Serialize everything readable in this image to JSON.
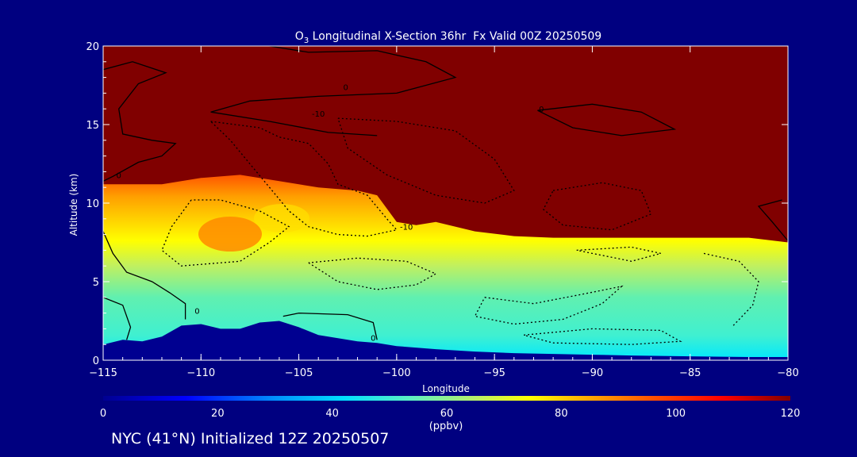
{
  "chart_data": {
    "type": "heatmap",
    "title_prefix": "O",
    "title_subscript": "3",
    "title_rest": " Longitudinal X-Section 36hr  Fx Valid 00Z 20250509",
    "xlabel": "Longitude",
    "ylabel": "Altitude (km)",
    "xlim": [
      -115,
      -80
    ],
    "ylim": [
      0,
      20
    ],
    "x_ticks": [
      -115,
      -110,
      -105,
      -100,
      -95,
      -90,
      -85,
      -80
    ],
    "x_tick_labels": [
      "−115",
      "−110",
      "−105",
      "−100",
      "−95",
      "−90",
      "−85",
      "−80"
    ],
    "y_ticks": [
      0,
      5,
      10,
      15,
      20
    ],
    "y_tick_labels": [
      "0",
      "5",
      "10",
      "15",
      "20"
    ],
    "colorbar": {
      "min": 0,
      "max": 120,
      "ticks": [
        0,
        20,
        40,
        60,
        80,
        100,
        120
      ],
      "tick_labels": [
        "0",
        "20",
        "40",
        "60",
        "80",
        "100",
        "120"
      ],
      "unit_label": "(ppbv)",
      "colors": [
        "#000090",
        "#0000ff",
        "#0090ff",
        "#00e0ff",
        "#60f0c0",
        "#c0f060",
        "#ffff00",
        "#ffb000",
        "#ff5000",
        "#ff0000",
        "#800000"
      ]
    },
    "terrain_profile": {
      "lon": [
        -115,
        -114,
        -113,
        -112,
        -111,
        -110,
        -109,
        -108,
        -107,
        -106,
        -105,
        -104,
        -103,
        -102,
        -101,
        -100,
        -98,
        -96,
        -94,
        -92,
        -90,
        -88,
        -85,
        -82,
        -80
      ],
      "alt_km": [
        1.0,
        1.3,
        1.2,
        1.5,
        2.2,
        2.3,
        2.0,
        2.0,
        2.4,
        2.5,
        2.1,
        1.6,
        1.4,
        1.2,
        1.1,
        0.9,
        0.7,
        0.55,
        0.45,
        0.4,
        0.35,
        0.3,
        0.25,
        0.2,
        0.2
      ]
    },
    "tropopause_ppbv120_top_km": {
      "lon": [
        -115,
        -112,
        -110,
        -108,
        -106,
        -104,
        -102,
        -101,
        -100,
        -99,
        -98,
        -96,
        -94,
        -92,
        -90,
        -88,
        -86,
        -84,
        -82,
        -80
      ],
      "alt_km": [
        11.2,
        11.2,
        11.6,
        11.8,
        11.4,
        11.0,
        10.8,
        10.5,
        8.8,
        8.6,
        8.8,
        8.2,
        7.9,
        7.8,
        7.8,
        7.8,
        7.8,
        7.8,
        7.8,
        7.5
      ]
    },
    "contour_labels": [
      {
        "text": "0",
        "lon": -102.6,
        "alt": 17.2
      },
      {
        "text": "-10",
        "lon": -104.0,
        "alt": 15.5
      },
      {
        "text": "0",
        "lon": -92.6,
        "alt": 15.8
      },
      {
        "text": "-10",
        "lon": -99.5,
        "alt": 8.3
      },
      {
        "text": "0",
        "lon": -114.2,
        "alt": 11.6
      },
      {
        "text": "0",
        "lon": -110.2,
        "alt": 2.95
      },
      {
        "text": "0",
        "lon": -101.2,
        "alt": 1.25
      }
    ]
  },
  "footer": {
    "text": "NYC (41°N) Initialized 12Z 20250507"
  }
}
